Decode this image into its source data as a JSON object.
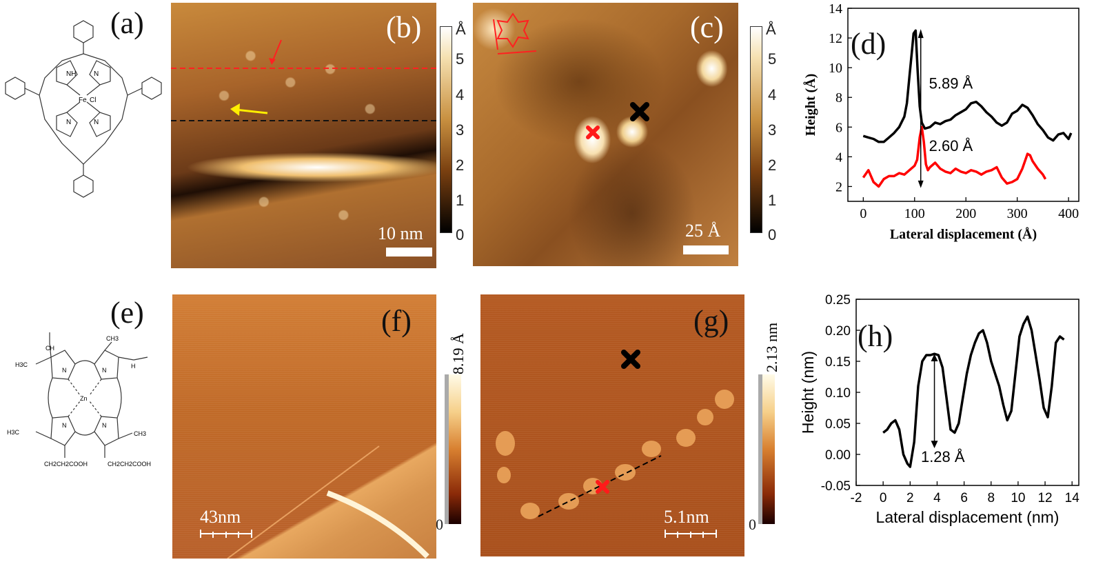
{
  "panels": {
    "a": {
      "letter": "(a)"
    },
    "b": {
      "letter": "(b)",
      "scale_label": "10 nm",
      "colorbar": {
        "unit": "Å",
        "ticks": [
          "5",
          "4",
          "3",
          "2",
          "1",
          "0"
        ]
      }
    },
    "c": {
      "letter": "(c)",
      "scale_label": "25 Å",
      "colorbar": {
        "unit": "Å",
        "ticks": [
          "5",
          "4",
          "3",
          "2",
          "1",
          "0"
        ]
      }
    },
    "d": {
      "letter": "(d)"
    },
    "e": {
      "letter": "(e)"
    },
    "f": {
      "letter": "(f)",
      "scale_label": "43nm",
      "colorbar": {
        "max_label": "8.19 Å",
        "min_label": "0"
      }
    },
    "g": {
      "letter": "(g)",
      "scale_label": "5.1nm",
      "colorbar": {
        "max_label": "2.13 nm",
        "min_label": "0"
      }
    },
    "h": {
      "letter": "(h)"
    }
  },
  "molecules": {
    "a": {
      "labels": {
        "nh": "NH",
        "n": "N",
        "fe": "Fe",
        "cl": "Cl"
      }
    },
    "e": {
      "labels": {
        "n": "N",
        "zn": "Zn",
        "ch3": "CH3",
        "h3c": "H3C",
        "ch": "CH",
        "h": "H",
        "acid": "CH2CH2COOH"
      }
    }
  },
  "chart_data": [
    {
      "type": "line",
      "panel": "d",
      "title": "",
      "xlabel": "Lateral displacement (Å)",
      "ylabel": "Height (Å)",
      "xlim": [
        -30,
        420
      ],
      "ylim": [
        1,
        14
      ],
      "xticks": [
        0,
        100,
        200,
        300,
        400
      ],
      "yticks": [
        2,
        4,
        6,
        8,
        10,
        12,
        14
      ],
      "grid": false,
      "series": [
        {
          "color": "#000000",
          "x": [
            0,
            10,
            20,
            30,
            40,
            50,
            60,
            70,
            80,
            85,
            90,
            95,
            98,
            102,
            106,
            110,
            114,
            120,
            130,
            140,
            150,
            160,
            170,
            180,
            190,
            200,
            210,
            220,
            230,
            240,
            250,
            260,
            270,
            280,
            290,
            300,
            310,
            320,
            330,
            340,
            350,
            360,
            370,
            380,
            390,
            400,
            405
          ],
          "y": [
            5.4,
            5.3,
            5.2,
            5.0,
            5.0,
            5.3,
            5.6,
            6.0,
            6.7,
            7.6,
            9.4,
            11.2,
            12.3,
            12.5,
            9.8,
            7.4,
            6.3,
            5.9,
            6.0,
            6.3,
            6.2,
            6.4,
            6.5,
            6.8,
            7.0,
            7.2,
            7.6,
            7.7,
            7.4,
            7.0,
            6.7,
            6.3,
            6.1,
            6.3,
            6.9,
            7.1,
            7.5,
            7.3,
            6.8,
            6.2,
            5.8,
            5.3,
            5.1,
            5.5,
            5.6,
            5.2,
            5.6
          ]
        },
        {
          "color": "#ff0000",
          "x": [
            0,
            10,
            20,
            30,
            40,
            50,
            60,
            70,
            80,
            90,
            100,
            105,
            110,
            114,
            118,
            122,
            126,
            130,
            140,
            150,
            160,
            170,
            180,
            190,
            200,
            210,
            220,
            230,
            240,
            250,
            260,
            270,
            280,
            290,
            300,
            310,
            320,
            325,
            330,
            340,
            350,
            355
          ],
          "y": [
            2.6,
            3.1,
            2.3,
            2.0,
            2.5,
            2.7,
            2.7,
            2.9,
            2.8,
            3.1,
            3.4,
            3.8,
            5.3,
            6.0,
            5.0,
            3.5,
            3.1,
            3.3,
            3.6,
            3.2,
            3.0,
            2.9,
            3.2,
            3.0,
            2.9,
            3.1,
            3.0,
            2.8,
            3.0,
            3.1,
            3.3,
            2.6,
            2.2,
            2.3,
            2.5,
            3.2,
            4.2,
            4.1,
            3.7,
            3.2,
            2.8,
            2.5
          ]
        }
      ],
      "annotations": [
        "5.89 Å",
        "2.60 Å"
      ]
    },
    {
      "type": "line",
      "panel": "h",
      "title": "",
      "xlabel": "Lateral displacement (nm)",
      "ylabel": "Height (nm)",
      "xlim": [
        -2,
        14.5
      ],
      "ylim": [
        -0.05,
        0.25
      ],
      "xticks": [
        -2,
        0,
        2,
        4,
        6,
        8,
        10,
        12,
        14
      ],
      "yticks": [
        -0.05,
        0.0,
        0.05,
        0.1,
        0.15,
        0.2,
        0.25
      ],
      "ytick_labels": [
        "-0.05",
        "0.00",
        "0.05",
        "0.10",
        "0.15",
        "0.20",
        "0.25"
      ],
      "grid": false,
      "series": [
        {
          "color": "#000000",
          "x": [
            0.0,
            0.3,
            0.6,
            0.9,
            1.2,
            1.5,
            1.8,
            2.0,
            2.3,
            2.6,
            2.9,
            3.2,
            3.5,
            3.8,
            4.1,
            4.4,
            4.7,
            5.0,
            5.3,
            5.6,
            5.9,
            6.2,
            6.5,
            6.8,
            7.1,
            7.4,
            7.7,
            8.0,
            8.3,
            8.6,
            8.9,
            9.2,
            9.5,
            9.8,
            10.1,
            10.4,
            10.7,
            11.0,
            11.3,
            11.6,
            11.9,
            12.2,
            12.5,
            12.8,
            13.1,
            13.4
          ],
          "y": [
            0.035,
            0.04,
            0.05,
            0.055,
            0.04,
            0.0,
            -0.015,
            -0.02,
            0.02,
            0.11,
            0.15,
            0.16,
            0.16,
            0.162,
            0.16,
            0.14,
            0.09,
            0.04,
            0.035,
            0.05,
            0.09,
            0.13,
            0.16,
            0.18,
            0.195,
            0.2,
            0.18,
            0.15,
            0.13,
            0.11,
            0.08,
            0.055,
            0.07,
            0.13,
            0.19,
            0.21,
            0.222,
            0.2,
            0.16,
            0.12,
            0.075,
            0.06,
            0.11,
            0.18,
            0.19,
            0.185
          ]
        }
      ],
      "annotations": [
        "1.28 Å"
      ]
    }
  ]
}
